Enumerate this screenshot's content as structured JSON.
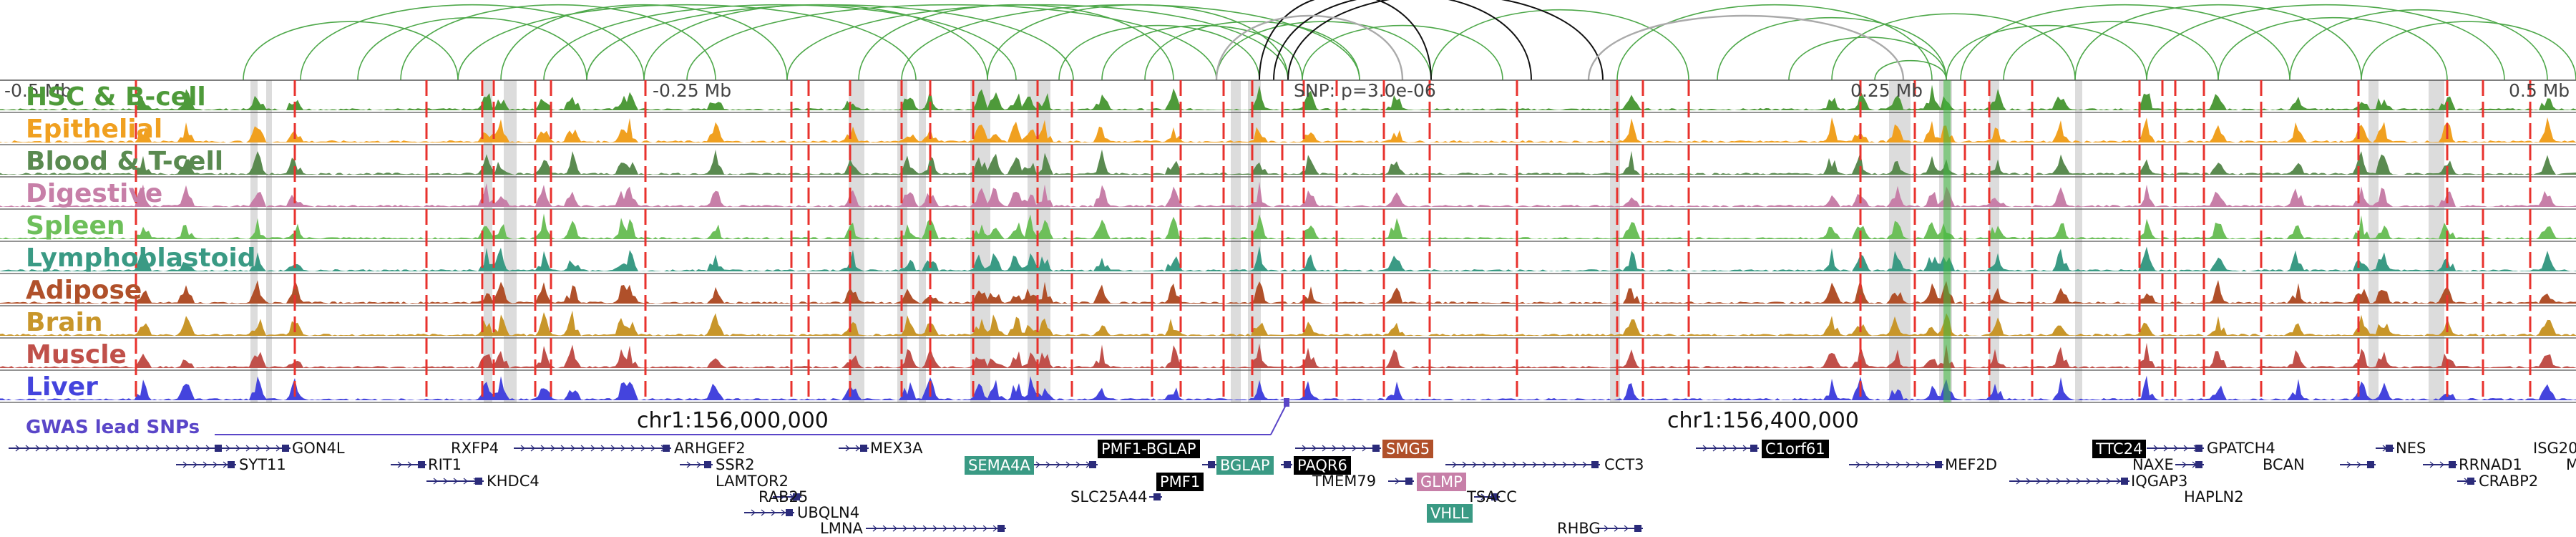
{
  "axis": {
    "ticks": [
      {
        "label": "-0.5 Mb",
        "x_mb": -0.5
      },
      {
        "label": "-0.25 Mb",
        "x_mb": -0.25
      },
      {
        "label": "0.25 Mb",
        "x_mb": 0.25
      },
      {
        "label": "0.5 Mb",
        "x_mb": 0.5
      }
    ],
    "snp_label": "SNP: p=3.0e-06"
  },
  "tracks": [
    {
      "name": "HSC & B-cell",
      "color": "#4e9a3a"
    },
    {
      "name": "Epithelial",
      "color": "#f0a020"
    },
    {
      "name": "Blood & T-cell",
      "color": "#5a8a50"
    },
    {
      "name": "Digestive",
      "color": "#c77fa8"
    },
    {
      "name": "Spleen",
      "color": "#6dbf5a"
    },
    {
      "name": "Lymphoblastoid",
      "color": "#3a9a84"
    },
    {
      "name": "Adipose",
      "color": "#b0502a"
    },
    {
      "name": "Brain",
      "color": "#c8962a"
    },
    {
      "name": "Muscle",
      "color": "#c0504a"
    },
    {
      "name": "Liver",
      "color": "#4444dd"
    }
  ],
  "gwas": {
    "label": "GWAS lead SNPs",
    "color": "#5a46c8"
  },
  "chrom_labels": [
    {
      "text": "chr1:156,000,000",
      "x_mb": -0.125
    },
    {
      "text": "chr1:156,400,000",
      "x_mb": 0.275
    }
  ],
  "genes": [
    {
      "name": "GON4L"
    },
    {
      "name": "SYT11"
    },
    {
      "name": "RXFP4"
    },
    {
      "name": "RIT1"
    },
    {
      "name": "KHDC4"
    },
    {
      "name": "ARHGEF2"
    },
    {
      "name": "SSR2"
    },
    {
      "name": "LAMTOR2"
    },
    {
      "name": "RAB25"
    },
    {
      "name": "UBQLN4"
    },
    {
      "name": "LMNA"
    },
    {
      "name": "MEX3A"
    },
    {
      "name": "SEMA4A",
      "highlight": "#3a9a84"
    },
    {
      "name": "PMF1-BGLAP",
      "highlight": "#000000"
    },
    {
      "name": "PMF1",
      "highlight": "#000000"
    },
    {
      "name": "SLC25A44"
    },
    {
      "name": "BGLAP",
      "highlight": "#3a9a84"
    },
    {
      "name": "PAQR6",
      "highlight": "#000000"
    },
    {
      "name": "SMG5",
      "highlight": "#b0502a"
    },
    {
      "name": "TMEM79"
    },
    {
      "name": "GLMP",
      "highlight": "#c77fa8"
    },
    {
      "name": "VHLL",
      "highlight": "#3a9a84"
    },
    {
      "name": "TSACC"
    },
    {
      "name": "CCT3"
    },
    {
      "name": "RHBG"
    },
    {
      "name": "C1orf61",
      "highlight": "#000000"
    },
    {
      "name": "MEF2D"
    },
    {
      "name": "TTC24",
      "highlight": "#000000"
    },
    {
      "name": "GPATCH4"
    },
    {
      "name": "NAXE"
    },
    {
      "name": "IQGAP3"
    },
    {
      "name": "HAPLN2"
    },
    {
      "name": "BCAN"
    },
    {
      "name": "NES"
    },
    {
      "name": "RRNAD1"
    },
    {
      "name": "ISG20"
    },
    {
      "name": "CRABP2"
    },
    {
      "name": "M"
    }
  ],
  "colors": {
    "red_marker": "#e8322d",
    "gray_band": "#dcdcdc",
    "arc_green": "#4ea84a",
    "arc_gray": "#aaaaaa",
    "arc_black": "#111111"
  }
}
